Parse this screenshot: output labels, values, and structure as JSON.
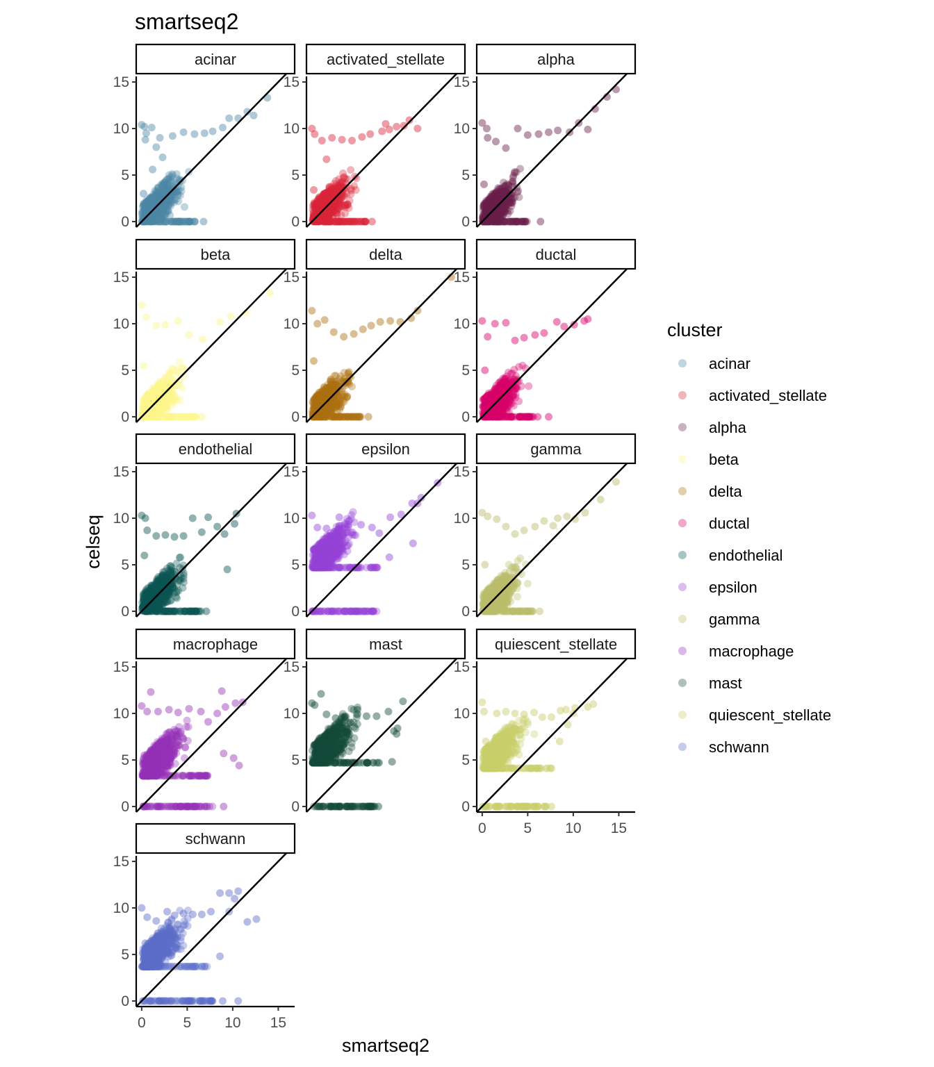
{
  "chart_data": {
    "type": "scatter",
    "title": "smartseq2",
    "xlabel": "smartseq2",
    "ylabel": "celseq",
    "xlim": [
      -0.6,
      16.8
    ],
    "ylim": [
      -0.6,
      15.6
    ],
    "x_ticks": [
      0,
      5,
      10,
      15
    ],
    "y_ticks": [
      0,
      5,
      10,
      15
    ],
    "x_tick_labels": [
      "0",
      "5",
      "10",
      "15"
    ],
    "y_tick_labels": [
      "0",
      "5",
      "10",
      "15"
    ],
    "reference_line": "y = x",
    "grid": false,
    "legend": {
      "title": "cluster",
      "position": "right"
    },
    "panels": [
      {
        "name": "acinar",
        "color": "#4E88A5",
        "offset_y": 0,
        "bottom_row": false,
        "band": null,
        "x_spread": 7.0,
        "points": [
          [
            0,
            10.4
          ],
          [
            0.3,
            10.2
          ],
          [
            1.1,
            10.1
          ],
          [
            1.6,
            8.0
          ],
          [
            0.4,
            8.8
          ],
          [
            2.3,
            6.9
          ],
          [
            3.4,
            9.2
          ],
          [
            4.6,
            9.6
          ],
          [
            5.8,
            9.4
          ],
          [
            6.9,
            9.5
          ],
          [
            7.8,
            9.7
          ],
          [
            8.9,
            10.1
          ],
          [
            9.6,
            11.1
          ],
          [
            10.6,
            11.1
          ],
          [
            11.6,
            11.8
          ],
          [
            12.3,
            11.4
          ],
          [
            13.8,
            13.3
          ],
          [
            6.8,
            0.0
          ],
          [
            0.2,
            3.0
          ],
          [
            1.2,
            5.6
          ],
          [
            0.5,
            9.5
          ],
          [
            2.0,
            9.0
          ]
        ]
      },
      {
        "name": "activated_stellate",
        "color": "#D92639",
        "offset_y": 0,
        "bottom_row": false,
        "band": null,
        "x_spread": 7.0,
        "points": [
          [
            0,
            10.0
          ],
          [
            0.3,
            9.4
          ],
          [
            1.1,
            8.7
          ],
          [
            2.2,
            9.0
          ],
          [
            3.3,
            8.8
          ],
          [
            4.4,
            8.7
          ],
          [
            5.5,
            9.1
          ],
          [
            6.4,
            9.4
          ],
          [
            7.7,
            9.7
          ],
          [
            8.5,
            9.9
          ],
          [
            9.3,
            10.2
          ],
          [
            10.1,
            10.3
          ],
          [
            10.7,
            10.9
          ],
          [
            11.6,
            10.0
          ],
          [
            5.8,
            0.0
          ],
          [
            6.6,
            0.0
          ],
          [
            0.2,
            3.4
          ],
          [
            1.6,
            6.7
          ],
          [
            8.1,
            10.5
          ]
        ]
      },
      {
        "name": "alpha",
        "color": "#6A1F4B",
        "offset_y": 0,
        "bottom_row": false,
        "band": null,
        "x_spread": 5.8,
        "points": [
          [
            0,
            10.6
          ],
          [
            0.5,
            10.0
          ],
          [
            0.6,
            9.0
          ],
          [
            1.5,
            8.6
          ],
          [
            2.6,
            7.9
          ],
          [
            3.9,
            10.0
          ],
          [
            5.0,
            9.3
          ],
          [
            6.2,
            9.4
          ],
          [
            7.3,
            9.6
          ],
          [
            8.3,
            9.8
          ],
          [
            9.6,
            9.6
          ],
          [
            10.6,
            10.6
          ],
          [
            11.6,
            9.9
          ],
          [
            12.4,
            12.1
          ],
          [
            13.7,
            13.4
          ],
          [
            14.7,
            14.2
          ],
          [
            0.2,
            4.0
          ],
          [
            6.4,
            0.0
          ]
        ]
      },
      {
        "name": "beta",
        "color": "#FDF68C",
        "offset_y": 0,
        "bottom_row": false,
        "band": null,
        "x_spread": 7.0,
        "points": [
          [
            0,
            12.0
          ],
          [
            0.5,
            10.7
          ],
          [
            1.6,
            9.8
          ],
          [
            2.6,
            9.9
          ],
          [
            4.0,
            10.3
          ],
          [
            5.2,
            8.8
          ],
          [
            6.7,
            8.3
          ],
          [
            8.6,
            10.2
          ],
          [
            9.8,
            10.8
          ],
          [
            11.4,
            11.2
          ],
          [
            14.1,
            13.3
          ],
          [
            6.6,
            0.0
          ],
          [
            0.2,
            5.5
          ]
        ]
      },
      {
        "name": "delta",
        "color": "#AC7011",
        "offset_y": 0,
        "bottom_row": false,
        "band": null,
        "x_spread": 6.4,
        "points": [
          [
            0,
            11.4
          ],
          [
            0.6,
            10.0
          ],
          [
            1.4,
            10.4
          ],
          [
            2.4,
            9.1
          ],
          [
            3.5,
            8.6
          ],
          [
            4.6,
            8.9
          ],
          [
            5.6,
            9.4
          ],
          [
            6.5,
            9.8
          ],
          [
            7.5,
            10.2
          ],
          [
            8.6,
            10.3
          ],
          [
            9.7,
            10.2
          ],
          [
            10.9,
            10.6
          ],
          [
            11.6,
            11.4
          ],
          [
            15.3,
            15.0
          ],
          [
            6.2,
            0.0
          ],
          [
            0.2,
            6.0
          ]
        ]
      },
      {
        "name": "ductal",
        "color": "#D6006B",
        "offset_y": 0,
        "bottom_row": false,
        "band": null,
        "x_spread": 6.6,
        "points": [
          [
            0,
            10.3
          ],
          [
            1.4,
            10.0
          ],
          [
            2.6,
            10.1
          ],
          [
            0.6,
            8.6
          ],
          [
            3.6,
            8.2
          ],
          [
            4.6,
            8.5
          ],
          [
            5.8,
            8.8
          ],
          [
            6.8,
            9.0
          ],
          [
            8.2,
            10.2
          ],
          [
            9.0,
            9.7
          ],
          [
            10.1,
            9.9
          ],
          [
            11.2,
            10.3
          ],
          [
            11.6,
            10.5
          ],
          [
            6.1,
            0.0
          ],
          [
            7.3,
            0.0
          ],
          [
            0.3,
            5.0
          ]
        ]
      },
      {
        "name": "endothelial",
        "color": "#0C5553",
        "offset_y": 0,
        "bottom_row": false,
        "band": null,
        "x_spread": 7.4,
        "points": [
          [
            0,
            10.3
          ],
          [
            0.4,
            10.0
          ],
          [
            0.6,
            8.7
          ],
          [
            1.6,
            8.1
          ],
          [
            2.6,
            8.2
          ],
          [
            3.6,
            8.0
          ],
          [
            4.6,
            8.1
          ],
          [
            5.6,
            10.0
          ],
          [
            6.6,
            8.5
          ],
          [
            7.3,
            10.1
          ],
          [
            8.3,
            9.1
          ],
          [
            9.1,
            8.3
          ],
          [
            10.2,
            9.4
          ],
          [
            10.4,
            10.5
          ],
          [
            9.4,
            4.5
          ],
          [
            6.5,
            0.0
          ],
          [
            7.1,
            0.0
          ],
          [
            0.3,
            6.0
          ]
        ]
      },
      {
        "name": "epsilon",
        "color": "#9542D8",
        "offset_y": 4.7,
        "bottom_row": false,
        "band": [
          0,
          7.2
        ],
        "x_spread": 7.2,
        "points": [
          [
            0,
            10.3
          ],
          [
            0.6,
            9.0
          ],
          [
            1.6,
            8.9
          ],
          [
            3.0,
            10.1
          ],
          [
            4.0,
            9.1
          ],
          [
            5.4,
            9.3
          ],
          [
            6.6,
            9.0
          ],
          [
            7.4,
            8.4
          ],
          [
            8.6,
            10.1
          ],
          [
            9.8,
            10.4
          ],
          [
            11.0,
            11.6
          ],
          [
            12.0,
            12.2
          ],
          [
            13.8,
            13.8
          ],
          [
            11.6,
            11.6
          ],
          [
            11.1,
            7.3
          ],
          [
            8.5,
            5.8
          ],
          [
            0.3,
            6.5
          ],
          [
            2.0,
            7.5
          ]
        ]
      },
      {
        "name": "gamma",
        "color": "#BBBD6B",
        "offset_y": 0,
        "bottom_row": false,
        "band": null,
        "x_spread": 6.6,
        "points": [
          [
            0,
            10.6
          ],
          [
            0.6,
            10.2
          ],
          [
            1.6,
            9.9
          ],
          [
            2.6,
            9.1
          ],
          [
            3.6,
            8.3
          ],
          [
            4.6,
            8.7
          ],
          [
            5.8,
            9.1
          ],
          [
            6.8,
            9.7
          ],
          [
            7.8,
            9.2
          ],
          [
            8.3,
            10.0
          ],
          [
            9.3,
            10.2
          ],
          [
            10.2,
            9.9
          ],
          [
            11.3,
            10.6
          ],
          [
            13.0,
            12.0
          ],
          [
            14.7,
            13.9
          ],
          [
            6.3,
            0.0
          ],
          [
            0.3,
            5.0
          ]
        ]
      },
      {
        "name": "macrophage",
        "color": "#9632B8",
        "offset_y": 3.3,
        "bottom_row": false,
        "band": [
          0,
          7.8
        ],
        "x_spread": 7.4,
        "points": [
          [
            0,
            10.8
          ],
          [
            0.6,
            10.2
          ],
          [
            1.0,
            12.3
          ],
          [
            1.8,
            10.2
          ],
          [
            3.0,
            10.4
          ],
          [
            4.0,
            10.1
          ],
          [
            5.2,
            10.5
          ],
          [
            6.5,
            10.2
          ],
          [
            7.3,
            9.1
          ],
          [
            8.3,
            10.0
          ],
          [
            8.8,
            12.4
          ],
          [
            9.2,
            10.7
          ],
          [
            10.3,
            11.1
          ],
          [
            11.1,
            11.2
          ],
          [
            10.7,
            4.4
          ],
          [
            10.1,
            5.2
          ],
          [
            9.0,
            5.7
          ],
          [
            9.0,
            0.0
          ],
          [
            6.0,
            0.0
          ],
          [
            0.3,
            5.5
          ]
        ]
      },
      {
        "name": "mast",
        "color": "#154A3A",
        "offset_y": 4.7,
        "bottom_row": false,
        "band": [
          0,
          7.0
        ],
        "x_spread": 7.4,
        "points": [
          [
            0,
            11.1
          ],
          [
            0.3,
            10.9
          ],
          [
            1.0,
            12.1
          ],
          [
            1.6,
            9.9
          ],
          [
            2.6,
            9.5
          ],
          [
            3.6,
            9.6
          ],
          [
            5.0,
            10.4
          ],
          [
            6.0,
            9.7
          ],
          [
            7.1,
            9.7
          ],
          [
            8.4,
            10.2
          ],
          [
            9.0,
            8.1
          ],
          [
            9.3,
            7.8
          ],
          [
            9.4,
            8.4
          ],
          [
            10.0,
            11.3
          ],
          [
            8.8,
            4.8
          ],
          [
            6.5,
            0.0
          ],
          [
            7.3,
            0.0
          ],
          [
            0.5,
            6.5
          ]
        ]
      },
      {
        "name": "quiescent_stellate",
        "color": "#C8CD6A",
        "offset_y": 4.1,
        "bottom_row": true,
        "band": [
          0,
          7.2
        ],
        "x_spread": 7.6,
        "points": [
          [
            0,
            11.2
          ],
          [
            0.2,
            10.2
          ],
          [
            1.6,
            10.0
          ],
          [
            2.6,
            10.2
          ],
          [
            3.6,
            10.0
          ],
          [
            4.6,
            9.9
          ],
          [
            5.7,
            10.1
          ],
          [
            6.6,
            9.6
          ],
          [
            7.6,
            9.6
          ],
          [
            8.6,
            10.3
          ],
          [
            9.2,
            10.4
          ],
          [
            10.2,
            10.6
          ],
          [
            11.6,
            10.7
          ],
          [
            12.2,
            11.0
          ],
          [
            10.0,
            10.0
          ],
          [
            8.5,
            7.0
          ],
          [
            9.4,
            8.8
          ],
          [
            0.4,
            7.0
          ],
          [
            7.6,
            0.0
          ]
        ]
      },
      {
        "name": "schwann",
        "color": "#5B6DC8",
        "offset_y": 3.7,
        "bottom_row": true,
        "band": [
          0,
          7.8
        ],
        "x_spread": 7.2,
        "points": [
          [
            0,
            10.0
          ],
          [
            0.6,
            9.0
          ],
          [
            1.6,
            8.6
          ],
          [
            2.8,
            9.6
          ],
          [
            3.6,
            9.2
          ],
          [
            4.6,
            9.4
          ],
          [
            5.6,
            9.3
          ],
          [
            6.6,
            9.3
          ],
          [
            7.6,
            9.6
          ],
          [
            8.6,
            11.6
          ],
          [
            9.6,
            11.6
          ],
          [
            10.2,
            11.0
          ],
          [
            10.6,
            11.8
          ],
          [
            11.6,
            8.5
          ],
          [
            12.6,
            8.8
          ],
          [
            9.6,
            9.6
          ],
          [
            8.6,
            4.8
          ],
          [
            8.9,
            0.0
          ],
          [
            10.6,
            0.0
          ],
          [
            0.4,
            6.2
          ]
        ]
      }
    ]
  }
}
